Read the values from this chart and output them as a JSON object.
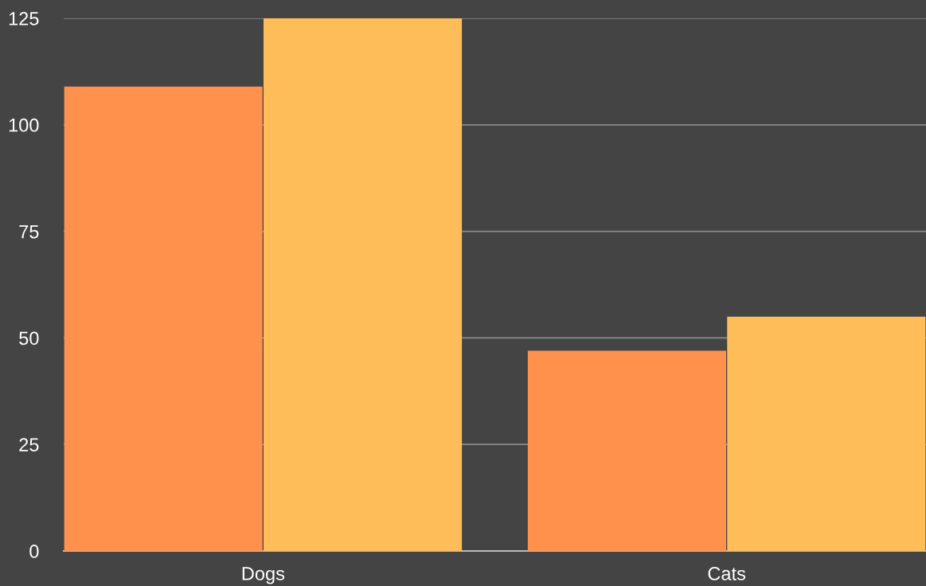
{
  "chart_data": {
    "type": "bar",
    "categories": [
      "Dogs",
      "Cats"
    ],
    "series": [
      {
        "color": "#ff914d",
        "values": [
          109,
          47
        ]
      },
      {
        "color": "#ffbd59",
        "values": [
          125,
          55
        ]
      }
    ],
    "ylim": [
      0,
      125
    ],
    "yticks": [
      0,
      25,
      50,
      75,
      100,
      125
    ],
    "grid": "y",
    "legend": false
  }
}
